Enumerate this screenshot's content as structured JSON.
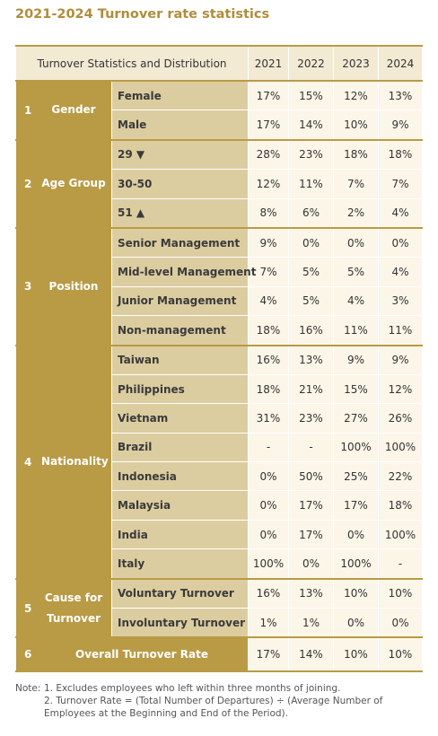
{
  "title": "2021-2024 Turnover rate statistics",
  "table": {
    "header": {
      "label": "Turnover Statistics and Distribution",
      "years": [
        "2021",
        "2022",
        "2023",
        "2024"
      ]
    },
    "groups": [
      {
        "number": "1",
        "name": "Gender",
        "rows": [
          {
            "label": "Female",
            "values": [
              "17%",
              "15%",
              "12%",
              "13%"
            ]
          },
          {
            "label": "Male",
            "values": [
              "17%",
              "14%",
              "10%",
              "9%"
            ]
          }
        ]
      },
      {
        "number": "2",
        "name": "Age Group",
        "rows": [
          {
            "label": "29 ▼",
            "values": [
              "28%",
              "23%",
              "18%",
              "18%"
            ]
          },
          {
            "label": "30-50",
            "values": [
              "12%",
              "11%",
              "7%",
              "7%"
            ]
          },
          {
            "label": "51 ▲",
            "values": [
              "8%",
              "6%",
              "2%",
              "4%"
            ]
          }
        ]
      },
      {
        "number": "3",
        "name": "Position",
        "rows": [
          {
            "label": "Senior Management",
            "values": [
              "9%",
              "0%",
              "0%",
              "0%"
            ]
          },
          {
            "label": "Mid-level Management",
            "values": [
              "7%",
              "5%",
              "5%",
              "4%"
            ]
          },
          {
            "label": "Junior Management",
            "values": [
              "4%",
              "5%",
              "4%",
              "3%"
            ]
          },
          {
            "label": "Non-management",
            "values": [
              "18%",
              "16%",
              "11%",
              "11%"
            ]
          }
        ]
      },
      {
        "number": "4",
        "name": "Nationality",
        "rows": [
          {
            "label": "Taiwan",
            "values": [
              "16%",
              "13%",
              "9%",
              "9%"
            ]
          },
          {
            "label": "Philippines",
            "values": [
              "18%",
              "21%",
              "15%",
              "12%"
            ]
          },
          {
            "label": "Vietnam",
            "values": [
              "31%",
              "23%",
              "27%",
              "26%"
            ]
          },
          {
            "label": "Brazil",
            "values": [
              "-",
              "-",
              "100%",
              "100%"
            ]
          },
          {
            "label": "Indonesia",
            "values": [
              "0%",
              "50%",
              "25%",
              "22%"
            ]
          },
          {
            "label": "Malaysia",
            "values": [
              "0%",
              "17%",
              "17%",
              "18%"
            ]
          },
          {
            "label": "India",
            "values": [
              "0%",
              "17%",
              "0%",
              "100%"
            ]
          },
          {
            "label": "Italy",
            "values": [
              "100%",
              "0%",
              "100%",
              "-"
            ]
          }
        ]
      },
      {
        "number": "5",
        "name": "Cause for Turnover",
        "rows": [
          {
            "label": "Voluntary Turnover",
            "values": [
              "16%",
              "13%",
              "10%",
              "10%"
            ]
          },
          {
            "label": "Involuntary Turnover",
            "values": [
              "1%",
              "1%",
              "0%",
              "0%"
            ]
          }
        ]
      }
    ],
    "overall": {
      "number": "6",
      "label": "Overall Turnover Rate",
      "values": [
        "17%",
        "14%",
        "10%",
        "10%"
      ]
    }
  },
  "notes": {
    "prefix": "Note:",
    "items": [
      "1. Excludes employees who left within three months of joining.",
      "2. Turnover Rate = (Total Number of Departures) ÷ (Average Number of Employees at the Beginning and End of the Period)."
    ]
  }
}
